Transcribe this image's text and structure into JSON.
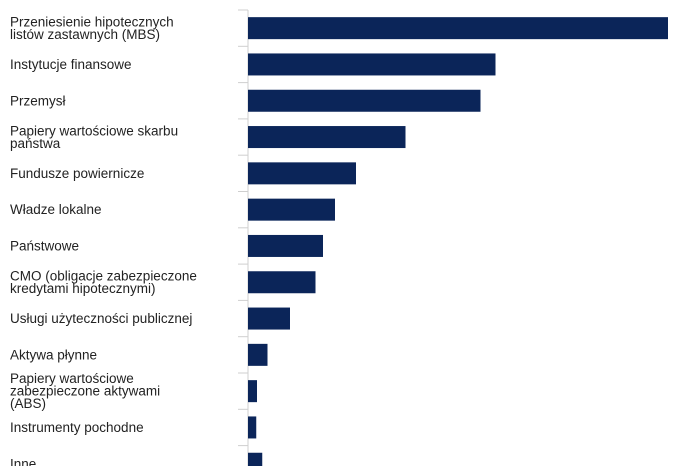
{
  "chart_data": {
    "type": "bar",
    "orientation": "horizontal",
    "title": "",
    "xlabel": "",
    "ylabel": "",
    "categories": [
      [
        "Przeniesienie hipotecznych",
        "listów zastawnych (MBS)"
      ],
      [
        "Instytucje finansowe"
      ],
      [
        "Przemysł"
      ],
      [
        "Papiery wartościowe skarbu",
        "państwa"
      ],
      [
        "Fundusze powiernicze"
      ],
      [
        "Władze lokalne"
      ],
      [
        "Państwowe"
      ],
      [
        "CMO (obligacje zabezpieczone",
        "kredytami hipotecznymi)"
      ],
      [
        "Usługi użyteczności publicznej"
      ],
      [
        "Aktywa płynne"
      ],
      [
        "Papiery wartościowe",
        "zabezpieczone aktywami",
        "(ABS)"
      ],
      [
        "Instrumenty pochodne"
      ],
      [
        "Inne"
      ]
    ],
    "values": [
      28.0,
      16.5,
      15.5,
      10.5,
      7.2,
      5.8,
      5.0,
      4.5,
      2.8,
      1.3,
      0.6,
      0.55,
      0.95
    ],
    "xlim": [
      0,
      28.0
    ],
    "grid": false,
    "legend": "none",
    "bar_color": "#0b2559"
  }
}
